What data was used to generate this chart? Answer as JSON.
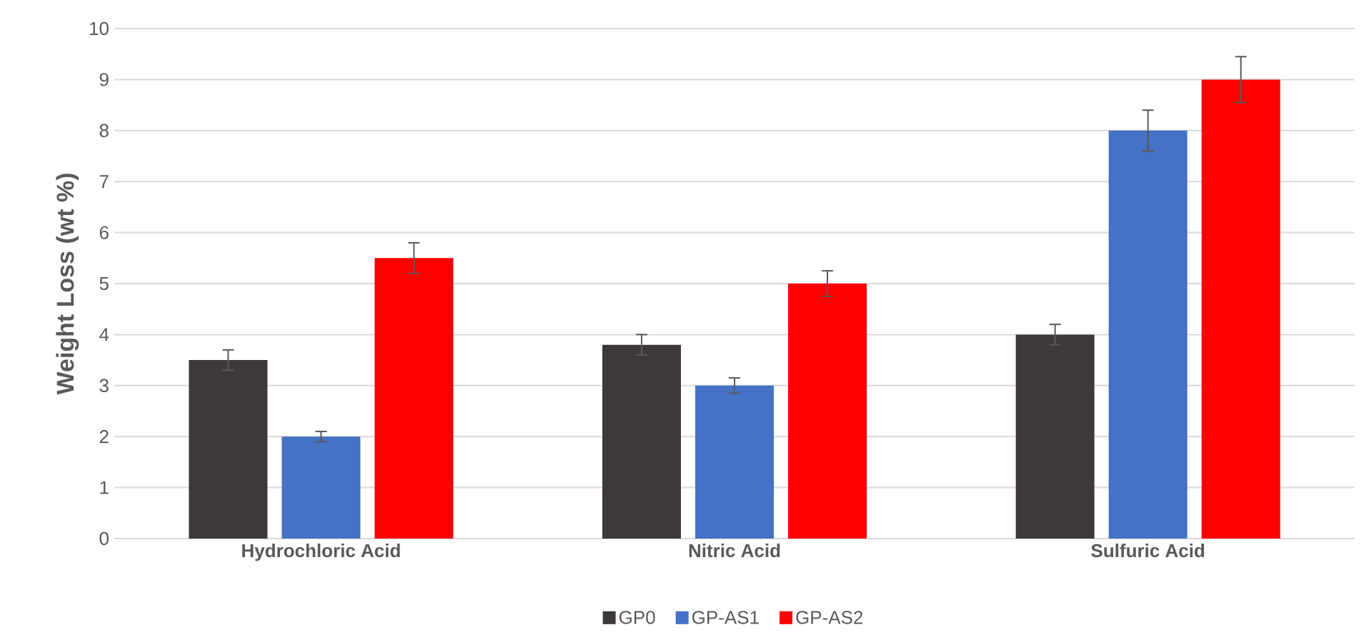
{
  "chart_data": {
    "type": "bar",
    "ylabel": "Weight Loss (wt %)",
    "categories": [
      "Hydrochloric Acid",
      "Nitric Acid",
      "Sulfuric Acid"
    ],
    "series": [
      {
        "name": "GP0",
        "color": "#3d3939",
        "values": [
          3.5,
          3.8,
          4.0
        ],
        "errors": [
          0.2,
          0.2,
          0.2
        ]
      },
      {
        "name": "GP-AS1",
        "color": "#4472c4",
        "values": [
          2.0,
          3.0,
          8.0
        ],
        "errors": [
          0.1,
          0.15,
          0.4
        ]
      },
      {
        "name": "GP-AS2",
        "color": "#ff0000",
        "values": [
          5.5,
          5.0,
          9.0
        ],
        "errors": [
          0.3,
          0.25,
          0.45
        ]
      }
    ],
    "ylim": [
      0,
      10
    ],
    "yticks": [
      0,
      1,
      2,
      3,
      4,
      5,
      6,
      7,
      8,
      9,
      10
    ],
    "grid": "y",
    "legend": "bottom"
  }
}
